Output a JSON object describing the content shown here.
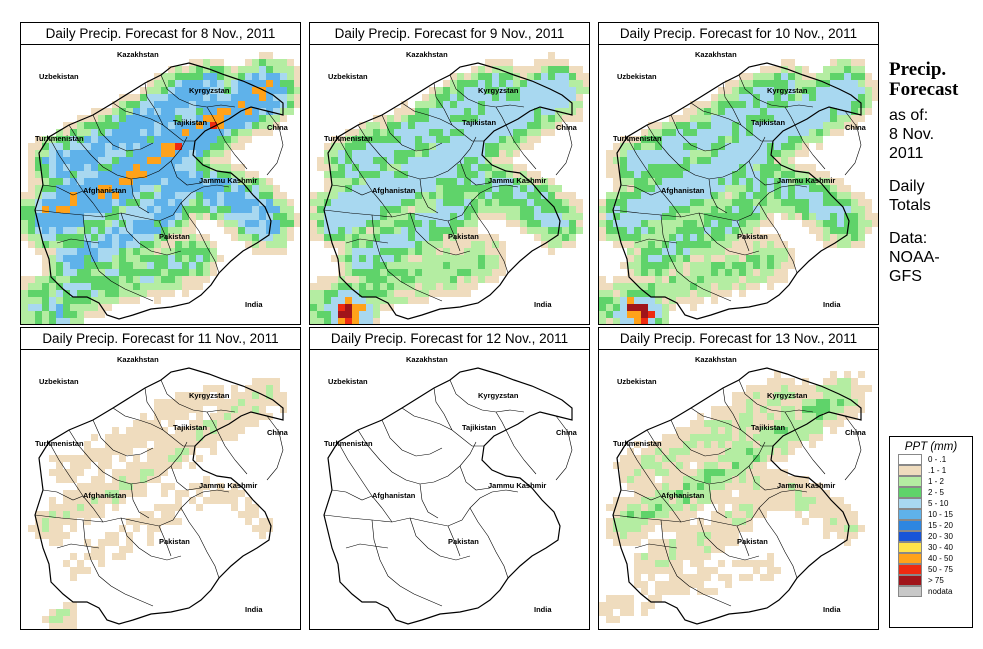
{
  "panels": [
    {
      "title": "Daily Precip. Forecast for  8 Nov., 2011",
      "intensity": 1.0,
      "south_storm": 0.35,
      "wet_level": 5
    },
    {
      "title": "Daily Precip. Forecast for  9 Nov., 2011",
      "intensity": 0.75,
      "south_storm": 1.0,
      "wet_level": 4
    },
    {
      "title": "Daily Precip. Forecast for  10 Nov., 2011",
      "intensity": 0.7,
      "south_storm": 1.0,
      "wet_level": 4
    },
    {
      "title": "Daily Precip. Forecast for  11 Nov., 2011",
      "intensity": 0.2,
      "south_storm": 0.15,
      "wet_level": 2
    },
    {
      "title": "Daily Precip. Forecast for  12 Nov., 2011",
      "intensity": 0.08,
      "south_storm": 0.0,
      "wet_level": 1
    },
    {
      "title": "Daily Precip. Forecast for  13 Nov., 2011",
      "intensity": 0.3,
      "south_storm": 0.0,
      "wet_level": 3
    }
  ],
  "map_labels": {
    "kazakhstan": "Kazakhstan",
    "uzbekistan": "Uzbekistan",
    "kyrgyzstan": "Kyrgyzstan",
    "china": "China",
    "tajikistan": "Tajikistan",
    "turkmenistan": "Turkmenistan",
    "jammu_kashmir": "Jammu Kashmir",
    "afghanistan": "Afghanistan",
    "pakistan": "Pakistan",
    "india": "India"
  },
  "sidebar": {
    "title_line1": "Precip.",
    "title_line2": "Forecast",
    "asof_line1": "as of:",
    "asof_line2": "8 Nov.",
    "asof_line3": "2011",
    "totals_line1": "Daily",
    "totals_line2": "Totals",
    "data_line1": "Data:",
    "data_line2": "NOAA-",
    "data_line3": "GFS"
  },
  "legend": {
    "title": "PPT (mm)",
    "items": [
      {
        "label": "0 - .1",
        "color": "#ffffff"
      },
      {
        "label": ".1 - 1",
        "color": "#efdcbe"
      },
      {
        "label": "1 - 2",
        "color": "#b4eda2"
      },
      {
        "label": "2 - 5",
        "color": "#5fd36a"
      },
      {
        "label": "5 - 10",
        "color": "#a8d8f0"
      },
      {
        "label": "10 - 15",
        "color": "#5fb2ea"
      },
      {
        "label": "15 - 20",
        "color": "#2e86e0"
      },
      {
        "label": "20 - 30",
        "color": "#1754d8"
      },
      {
        "label": "30 - 40",
        "color": "#ffe44a"
      },
      {
        "label": "40 - 50",
        "color": "#ffa21a"
      },
      {
        "label": "50 - 75",
        "color": "#ee2a10"
      },
      {
        "label": "> 75",
        "color": "#a0141a"
      },
      {
        "label": "nodata",
        "color": "#c8c8c8"
      }
    ]
  }
}
